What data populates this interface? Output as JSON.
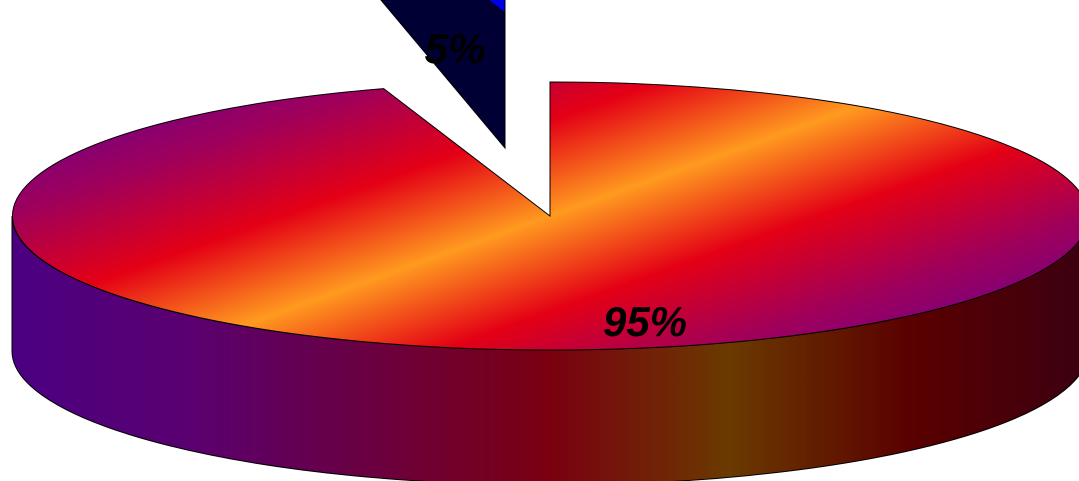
{
  "chart_data": {
    "type": "pie",
    "style": "3d-exploded",
    "legend": "none",
    "slices": [
      {
        "label": "95%",
        "value": 95,
        "exploded": false
      },
      {
        "label": "5%",
        "value": 5,
        "exploded": true
      }
    ]
  },
  "colors": {
    "large_slice_top": [
      "#6b008a",
      "#a0005a",
      "#e40015",
      "#ff9a1f",
      "#e40015",
      "#a0005a",
      "#6b008a"
    ],
    "large_slice_side": [
      "#4b0082",
      "#5a0070",
      "#6a0040",
      "#7a0010",
      "#6a3a00",
      "#5a0000",
      "#3b0010"
    ],
    "small_slice_top": "#0000e6",
    "small_slice_side": "#000035",
    "outline": "#000000"
  }
}
